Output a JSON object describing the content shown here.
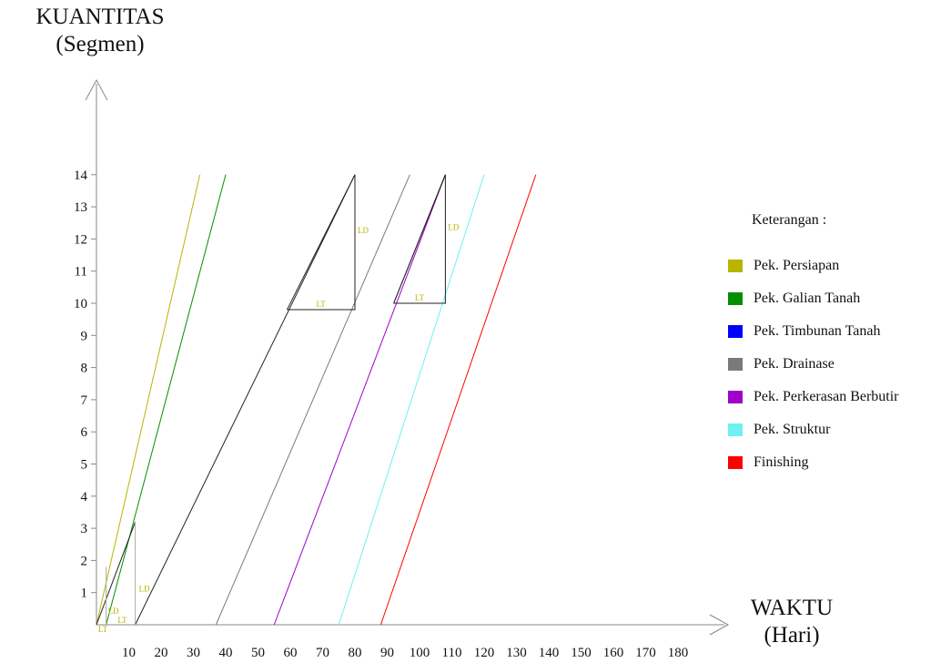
{
  "y_axis_title": [
    "KUANTITAS",
    "(Segmen)"
  ],
  "x_axis_title": [
    "WAKTU",
    "(Hari)"
  ],
  "legend_title": "Keterangan :",
  "chart_data": {
    "type": "line",
    "title": "",
    "xlabel": "WAKTU (Hari)",
    "ylabel": "KUANTITAS (Segmen)",
    "xlim": [
      0,
      180
    ],
    "ylim": [
      0,
      14
    ],
    "x_ticks": [
      "10",
      "20",
      "30",
      "40",
      "50",
      "60",
      "70",
      "80",
      "90",
      "100",
      "110",
      "120",
      "130",
      "140",
      "150",
      "160",
      "170",
      "180"
    ],
    "y_ticks": [
      "1",
      "2",
      "3",
      "4",
      "5",
      "6",
      "7",
      "8",
      "9",
      "10",
      "11",
      "12",
      "13",
      "14"
    ],
    "series": [
      {
        "name": "Pek. Persiapan",
        "color": "#b8b400",
        "points": [
          [
            0,
            0
          ],
          [
            32,
            14
          ]
        ]
      },
      {
        "name": "Pek. Galian Tanah",
        "color": "#008f00",
        "points": [
          [
            3,
            0
          ],
          [
            40,
            14
          ]
        ]
      },
      {
        "name": "Pek. Timbunan Tanah",
        "color": "#0000ff",
        "points": []
      },
      {
        "name": "Pek. Drainase",
        "color": "#7a7a7a",
        "points": [
          [
            37,
            0
          ],
          [
            97,
            14
          ]
        ]
      },
      {
        "name": "Pek. Perkerasan Berbutir",
        "color": "#a000c8",
        "points": [
          [
            55,
            0
          ],
          [
            108,
            14
          ]
        ]
      },
      {
        "name": "Pek. Struktur",
        "color": "#70f0f0",
        "points": [
          [
            75,
            0
          ],
          [
            120,
            14
          ]
        ]
      },
      {
        "name": "Finishing",
        "color": "#ff0000",
        "points": [
          [
            88,
            0
          ],
          [
            136,
            14
          ]
        ]
      }
    ],
    "black_lines": [
      {
        "points": [
          [
            0,
            0
          ],
          [
            12,
            3.2
          ]
        ]
      },
      {
        "points": [
          [
            12,
            0
          ],
          [
            80,
            14
          ]
        ]
      },
      {
        "points": [
          [
            92,
            10
          ],
          [
            108,
            14
          ]
        ]
      }
    ],
    "annotations": [
      {
        "type": "triangle",
        "label_h": "LT",
        "label_v": "LD",
        "points": [
          [
            59,
            9.8
          ],
          [
            80,
            9.8
          ],
          [
            80,
            14
          ]
        ]
      },
      {
        "type": "triangle",
        "label_h": "LT",
        "label_v": "LD",
        "points": [
          [
            92,
            10
          ],
          [
            108,
            10
          ],
          [
            108,
            14
          ]
        ]
      },
      {
        "type": "vline",
        "label": "LD",
        "x": 3,
        "y": [
          0,
          1.8
        ]
      },
      {
        "type": "vline",
        "label": "LD",
        "x": 12,
        "y": [
          0,
          3.2
        ]
      },
      {
        "type": "label",
        "text": "LT",
        "x": 2,
        "y": 0
      },
      {
        "type": "label",
        "text": "LT",
        "x": 8,
        "y": 0
      }
    ]
  }
}
